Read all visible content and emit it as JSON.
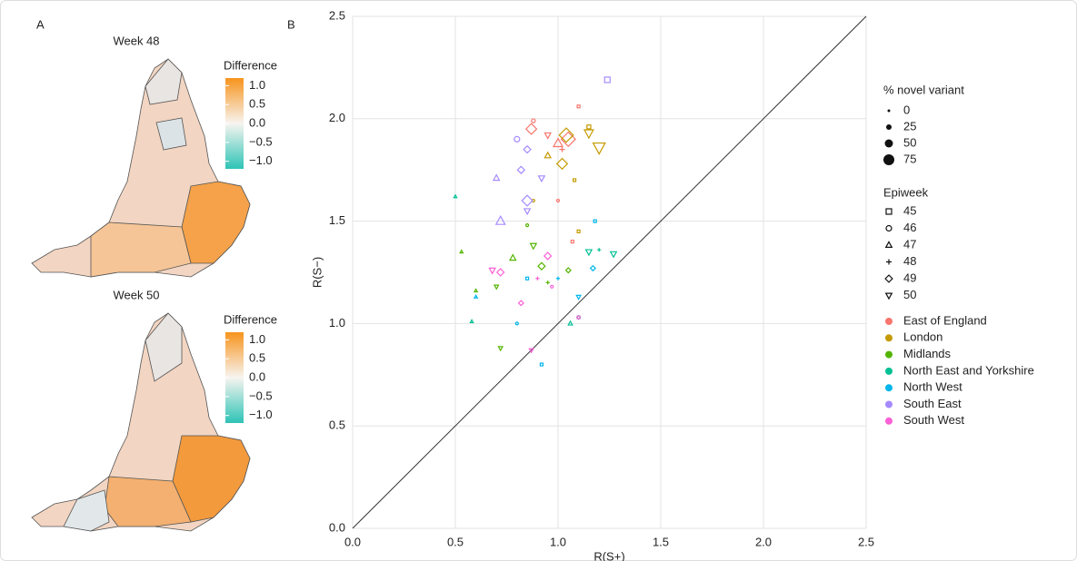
{
  "chart_data": [
    {
      "type": "map",
      "label": "A",
      "title": "Week 48",
      "legend_title": "Difference",
      "clim": [
        -1.2,
        1.2
      ],
      "cticks": [
        {
          "value": 1,
          "label": "1.0"
        },
        0.5,
        {
          "value": 0,
          "label": "0.0"
        },
        {
          "value": -0.5,
          "label": "−0.5"
        },
        {
          "value": -1,
          "label": "−1.0"
        }
      ]
    },
    {
      "type": "map",
      "title": "Week 50",
      "legend_title": "Difference",
      "clim": [
        -1.2,
        1.2
      ],
      "cticks": [
        {
          "value": 1,
          "label": "1.0"
        },
        0.5,
        {
          "value": 0,
          "label": "0.0"
        },
        {
          "value": -0.5,
          "label": "−0.5"
        },
        {
          "value": -1,
          "label": "−1.0"
        }
      ]
    },
    {
      "type": "scatter",
      "label": "B",
      "xlabel": "R(S+)",
      "ylabel": "R(S−)",
      "grid": true,
      "xlim": [
        0,
        2.5
      ],
      "ylim": [
        0,
        2.5
      ],
      "xticks": [
        {
          "value": 0,
          "label": "0.0"
        },
        0.5,
        {
          "value": 1,
          "label": "1.0"
        },
        1.5,
        {
          "value": 2,
          "label": "2.0"
        },
        2.5
      ],
      "yticks": [
        {
          "value": 0,
          "label": "0.0"
        },
        0.5,
        {
          "value": 1,
          "label": "1.0"
        },
        1.5,
        {
          "value": 2,
          "label": "2.0"
        },
        2.5
      ],
      "size_legend": {
        "title": "% novel variant",
        "values": [
          0,
          25,
          50,
          75
        ]
      },
      "shape_legend": {
        "title": "Epiweek",
        "values": [
          45,
          46,
          47,
          48,
          49,
          50
        ],
        "shapes": [
          "square",
          "circle",
          "triangle",
          "plus",
          "diamond",
          "triangle-down"
        ]
      },
      "series": [
        {
          "name": "East of England",
          "color": "#F8766D",
          "x": [
            0.87,
            1.05,
            1.0,
            0.95,
            1.1,
            0.88,
            1.02,
            1.0,
            1.07
          ],
          "y": [
            1.95,
            1.9,
            1.88,
            1.92,
            2.06,
            1.99,
            1.85,
            1.6,
            1.4
          ],
          "week": [
            49,
            49,
            47,
            50,
            45,
            46,
            48,
            46,
            45
          ],
          "pct": [
            50,
            75,
            50,
            25,
            0,
            10,
            25,
            0,
            0
          ]
        },
        {
          "name": "London",
          "color": "#C49A00",
          "x": [
            1.04,
            1.15,
            1.2,
            1.02,
            0.95,
            1.08,
            1.15,
            1.1,
            0.88
          ],
          "y": [
            1.92,
            1.93,
            1.86,
            1.78,
            1.82,
            1.7,
            1.96,
            1.45,
            1.6
          ],
          "week": [
            49,
            50,
            50,
            49,
            47,
            45,
            45,
            45,
            46
          ],
          "pct": [
            75,
            50,
            75,
            50,
            25,
            0,
            10,
            0,
            0
          ]
        },
        {
          "name": "Midlands",
          "color": "#53B400",
          "x": [
            0.88,
            0.78,
            0.92,
            0.7,
            0.95,
            1.05,
            0.72,
            0.6,
            0.85,
            0.53
          ],
          "y": [
            1.38,
            1.32,
            1.28,
            1.18,
            1.2,
            1.26,
            0.88,
            1.16,
            1.48,
            1.35
          ],
          "week": [
            50,
            47,
            49,
            50,
            48,
            49,
            50,
            47,
            46,
            47
          ],
          "pct": [
            25,
            25,
            25,
            10,
            10,
            10,
            10,
            0,
            0,
            0
          ]
        },
        {
          "name": "North East and Yorkshire",
          "color": "#00C094",
          "x": [
            1.27,
            1.15,
            1.06,
            1.1,
            0.5,
            0.58,
            1.2
          ],
          "y": [
            1.34,
            1.35,
            1.0,
            1.03,
            1.62,
            1.01,
            1.36
          ],
          "week": [
            50,
            50,
            47,
            49,
            47,
            47,
            48
          ],
          "pct": [
            25,
            25,
            10,
            0,
            0,
            0,
            10
          ]
        },
        {
          "name": "North West",
          "color": "#00B6EB",
          "x": [
            1.17,
            1.1,
            1.0,
            0.8,
            0.85,
            0.92,
            0.6,
            1.18
          ],
          "y": [
            1.27,
            1.13,
            1.22,
            1.0,
            1.22,
            0.8,
            1.13,
            1.5
          ],
          "week": [
            49,
            50,
            48,
            46,
            45,
            45,
            47,
            45
          ],
          "pct": [
            10,
            10,
            10,
            0,
            0,
            0,
            0,
            0
          ]
        },
        {
          "name": "South East",
          "color": "#A58AFF",
          "x": [
            0.85,
            0.72,
            0.82,
            0.85,
            0.7,
            0.92,
            1.24,
            0.8,
            0.85
          ],
          "y": [
            1.6,
            1.5,
            1.75,
            1.85,
            1.71,
            1.71,
            2.19,
            1.9,
            1.55
          ],
          "week": [
            49,
            47,
            49,
            49,
            47,
            50,
            45,
            46,
            50
          ],
          "pct": [
            50,
            50,
            25,
            25,
            25,
            25,
            25,
            25,
            25
          ]
        },
        {
          "name": "South West",
          "color": "#FB61D7",
          "x": [
            0.72,
            0.68,
            0.95,
            0.9,
            0.82,
            0.87,
            1.1,
            0.97
          ],
          "y": [
            1.25,
            1.26,
            1.33,
            1.22,
            1.1,
            0.87,
            1.03,
            1.18
          ],
          "week": [
            49,
            50,
            49,
            48,
            49,
            50,
            45,
            46
          ],
          "pct": [
            25,
            25,
            25,
            10,
            10,
            10,
            0,
            0
          ]
        }
      ]
    }
  ]
}
